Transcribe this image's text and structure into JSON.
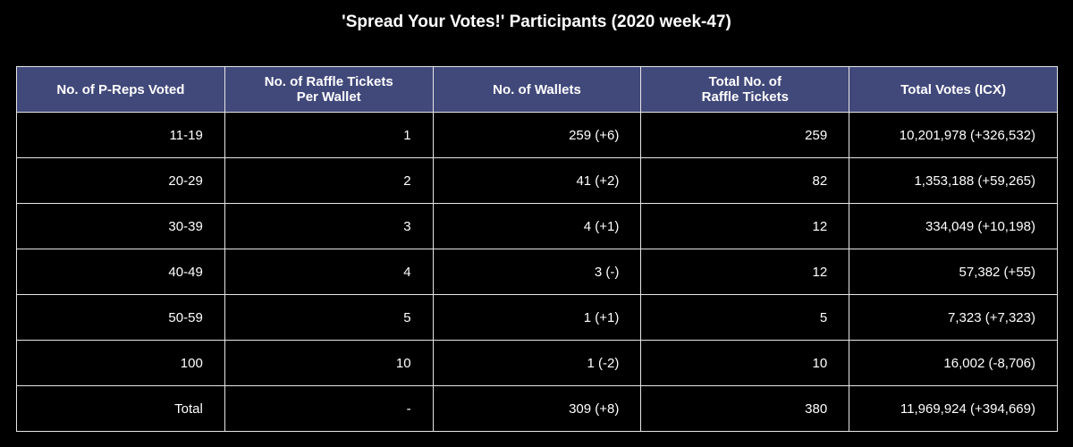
{
  "chart_data": {
    "type": "table",
    "title": "'Spread Your Votes!' Participants (2020 week-47)",
    "columns": [
      [
        "No. of P-Reps Voted"
      ],
      [
        "No. of Raffle Tickets",
        "Per Wallet"
      ],
      [
        "No. of Wallets"
      ],
      [
        "Total No. of",
        "Raffle Tickets"
      ],
      [
        "Total Votes (ICX)"
      ]
    ],
    "rows": [
      [
        "11-19",
        "1",
        "259 (+6)",
        "259",
        "10,201,978 (+326,532)"
      ],
      [
        "20-29",
        "2",
        "41 (+2)",
        "82",
        "1,353,188 (+59,265)"
      ],
      [
        "30-39",
        "3",
        "4 (+1)",
        "12",
        "334,049 (+10,198)"
      ],
      [
        "40-49",
        "4",
        "3 (-)",
        "12",
        "57,382 (+55)"
      ],
      [
        "50-59",
        "5",
        "1 (+1)",
        "5",
        "7,323 (+7,323)"
      ],
      [
        "100",
        "10",
        "1 (-2)",
        "10",
        "16,002 (-8,706)"
      ],
      [
        "Total",
        "-",
        "309 (+8)",
        "380",
        "11,969,924 (+394,669)"
      ]
    ],
    "colors": {
      "header_background": "#41497a",
      "cell_background": "#000000",
      "border": "#e6e6e6",
      "text": "#ffffff"
    }
  }
}
